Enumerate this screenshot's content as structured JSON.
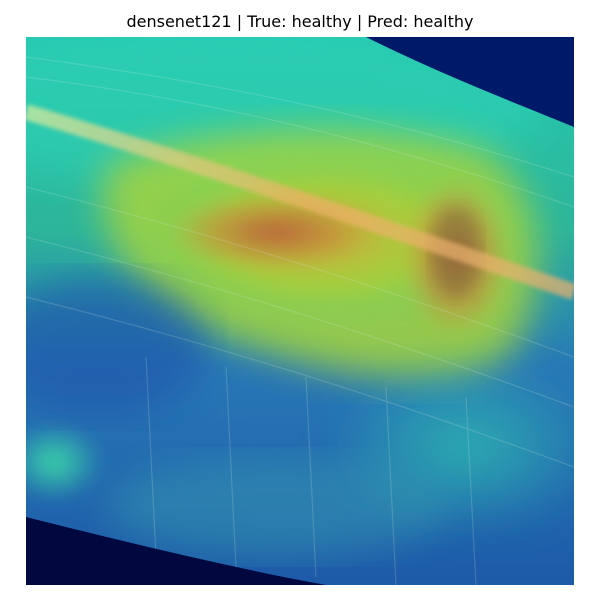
{
  "figure": {
    "title": "densenet121 | True: healthy | Pred: healthy"
  },
  "image": {
    "icon": "gradcam-heatmap-leaf-image",
    "colors": {
      "background_dark": "#00094f",
      "low": "#1f4fa8",
      "mid_low": "#23b7a8",
      "mid": "#8fd24a",
      "high": "#d9a53a",
      "peak": "#c55a3c"
    }
  }
}
